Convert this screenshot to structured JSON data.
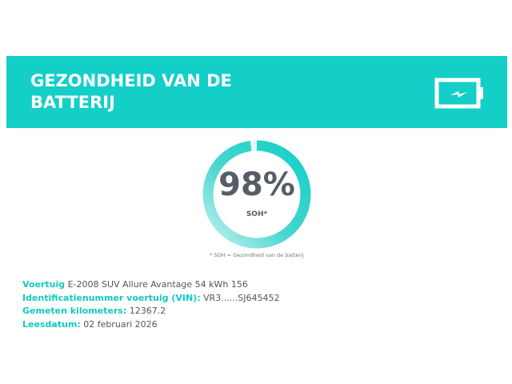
{
  "header": {
    "title": "GEZONDHEID VAN DE BATTERIJ",
    "icon": "battery-charging-icon"
  },
  "gauge": {
    "value_percent": 98,
    "value_label": "98%",
    "label": "SOH*",
    "footnote": "* SOH = Gezondheid van de batterij"
  },
  "details": [
    {
      "label": "Voertuig",
      "value": "E-2008 SUV Allure Avantage 54 kWh 156"
    },
    {
      "label": "Identificatienummer voertuig (VIN):",
      "value": "VR3......SJ645452"
    },
    {
      "label": "Gemeten kilometers:",
      "value": "12367.2"
    },
    {
      "label": "Leesdatum:",
      "value": "02 februari 2026"
    }
  ],
  "colors": {
    "accent": "#13cfc8",
    "text": "#555d66"
  }
}
